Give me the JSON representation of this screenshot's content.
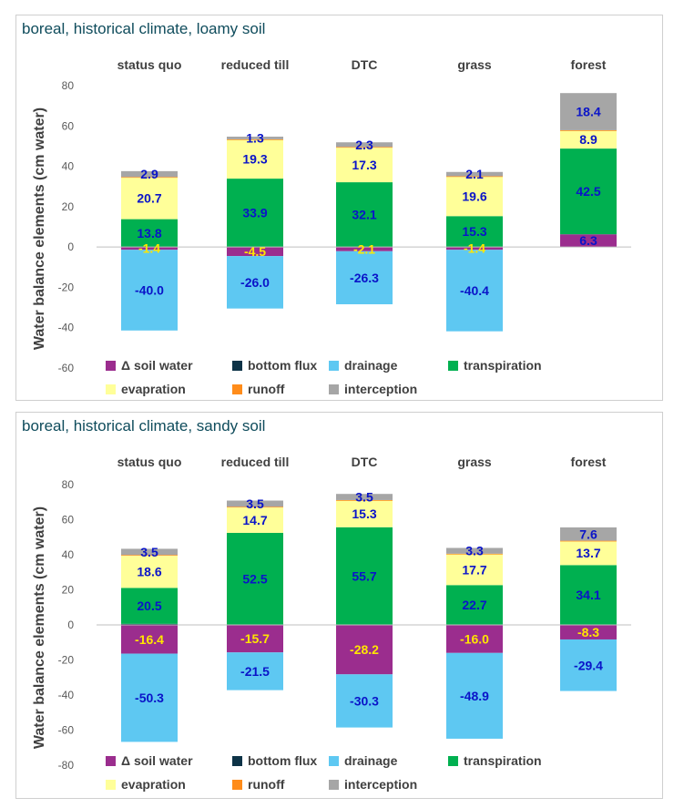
{
  "legend": [
    {
      "key": "soil_water",
      "label": "Δ soil water",
      "color": "#9b2d8e"
    },
    {
      "key": "bottom_flux",
      "label": "bottom flux",
      "color": "#0d3347"
    },
    {
      "key": "drainage",
      "label": "drainage",
      "color": "#5ec8f2"
    },
    {
      "key": "transpiration",
      "label": "transpiration",
      "color": "#00b050"
    },
    {
      "key": "evapration",
      "label": "evapration",
      "color": "#ffff99"
    },
    {
      "key": "runoff",
      "label": "runoff",
      "color": "#ff8c1a"
    },
    {
      "key": "interception",
      "label": "interception",
      "color": "#a6a6a6"
    }
  ],
  "label_colors": {
    "default": "#0a14c8",
    "negative_soil": "#ffe600"
  },
  "chart_data": [
    {
      "type": "bar",
      "stacked": true,
      "title": "boreal, historical climate, loamy soil",
      "ylabel": "Water balance elements (cm water)",
      "xlabel": "",
      "ylim": [
        -60,
        80
      ],
      "yticks": [
        -60,
        -40,
        -20,
        0,
        20,
        40,
        60,
        80
      ],
      "categories": [
        "status quo",
        "reduced till",
        "DTC",
        "grass",
        "forest"
      ],
      "series": [
        {
          "key": "soil_water",
          "name": "Δ soil water",
          "values": [
            -1.4,
            -4.5,
            -2.1,
            -1.4,
            6.3
          ],
          "labels": [
            "-1.4",
            "-4.5",
            "-2.1",
            "-1.4",
            "6.3"
          ]
        },
        {
          "key": "bottom_flux",
          "name": "bottom flux",
          "values": [
            0,
            0,
            0,
            0,
            0
          ],
          "labels": [
            "",
            "",
            "",
            "",
            ""
          ]
        },
        {
          "key": "drainage",
          "name": "drainage",
          "values": [
            -40.0,
            -26.0,
            -26.3,
            -40.4,
            0
          ],
          "labels": [
            "-40.0",
            "-26.0",
            "-26.3",
            "-40.4",
            ""
          ]
        },
        {
          "key": "transpiration",
          "name": "transpiration",
          "values": [
            13.8,
            33.9,
            32.1,
            15.3,
            42.5
          ],
          "labels": [
            "13.8",
            "33.9",
            "32.1",
            "15.3",
            "42.5"
          ]
        },
        {
          "key": "evapration",
          "name": "evapration",
          "values": [
            20.7,
            19.3,
            17.3,
            19.6,
            8.9
          ],
          "labels": [
            "20.7",
            "19.3",
            "17.3",
            "19.6",
            "8.9"
          ]
        },
        {
          "key": "runoff",
          "name": "runoff",
          "values": [
            0.2,
            0.2,
            0.2,
            0.2,
            0.2
          ],
          "labels": [
            "",
            "",
            "",
            "",
            ""
          ]
        },
        {
          "key": "interception",
          "name": "interception",
          "values": [
            2.9,
            1.3,
            2.3,
            2.1,
            18.4
          ],
          "labels": [
            "2.9",
            "1.3",
            "2.3",
            "2.1",
            "18.4"
          ]
        }
      ]
    },
    {
      "type": "bar",
      "stacked": true,
      "title": "boreal, historical climate, sandy soil",
      "ylabel": "Water balance elements (cm water)",
      "xlabel": "",
      "ylim": [
        -80,
        80
      ],
      "yticks": [
        -80,
        -60,
        -40,
        -20,
        0,
        20,
        40,
        60,
        80
      ],
      "categories": [
        "status quo",
        "reduced till",
        "DTC",
        "grass",
        "forest"
      ],
      "series": [
        {
          "key": "soil_water",
          "name": "Δ soil water",
          "values": [
            -16.4,
            -15.7,
            -28.2,
            -16.0,
            -8.3
          ],
          "labels": [
            "-16.4",
            "-15.7",
            "-28.2",
            "-16.0",
            "-8.3"
          ]
        },
        {
          "key": "bottom_flux",
          "name": "bottom flux",
          "values": [
            0.6,
            0,
            0,
            0,
            0
          ],
          "labels": [
            "",
            "",
            "",
            "",
            ""
          ]
        },
        {
          "key": "drainage",
          "name": "drainage",
          "values": [
            -50.3,
            -21.5,
            -30.3,
            -48.9,
            -29.4
          ],
          "labels": [
            "-50.3",
            "-21.5",
            "-30.3",
            "-48.9",
            "-29.4"
          ]
        },
        {
          "key": "transpiration",
          "name": "transpiration",
          "values": [
            20.5,
            52.5,
            55.7,
            22.7,
            34.1
          ],
          "labels": [
            "20.5",
            "52.5",
            "55.7",
            "22.7",
            "34.1"
          ]
        },
        {
          "key": "evapration",
          "name": "evapration",
          "values": [
            18.6,
            14.7,
            15.3,
            17.7,
            13.7
          ],
          "labels": [
            "18.6",
            "14.7",
            "15.3",
            "17.7",
            "13.7"
          ]
        },
        {
          "key": "runoff",
          "name": "runoff",
          "values": [
            0.2,
            0.2,
            0.2,
            0.2,
            0.2
          ],
          "labels": [
            "",
            "",
            "",
            "",
            ""
          ]
        },
        {
          "key": "interception",
          "name": "interception",
          "values": [
            3.5,
            3.5,
            3.5,
            3.3,
            7.6
          ],
          "labels": [
            "3.5",
            "3.5",
            "3.5",
            "3.3",
            "7.6"
          ]
        }
      ]
    }
  ]
}
